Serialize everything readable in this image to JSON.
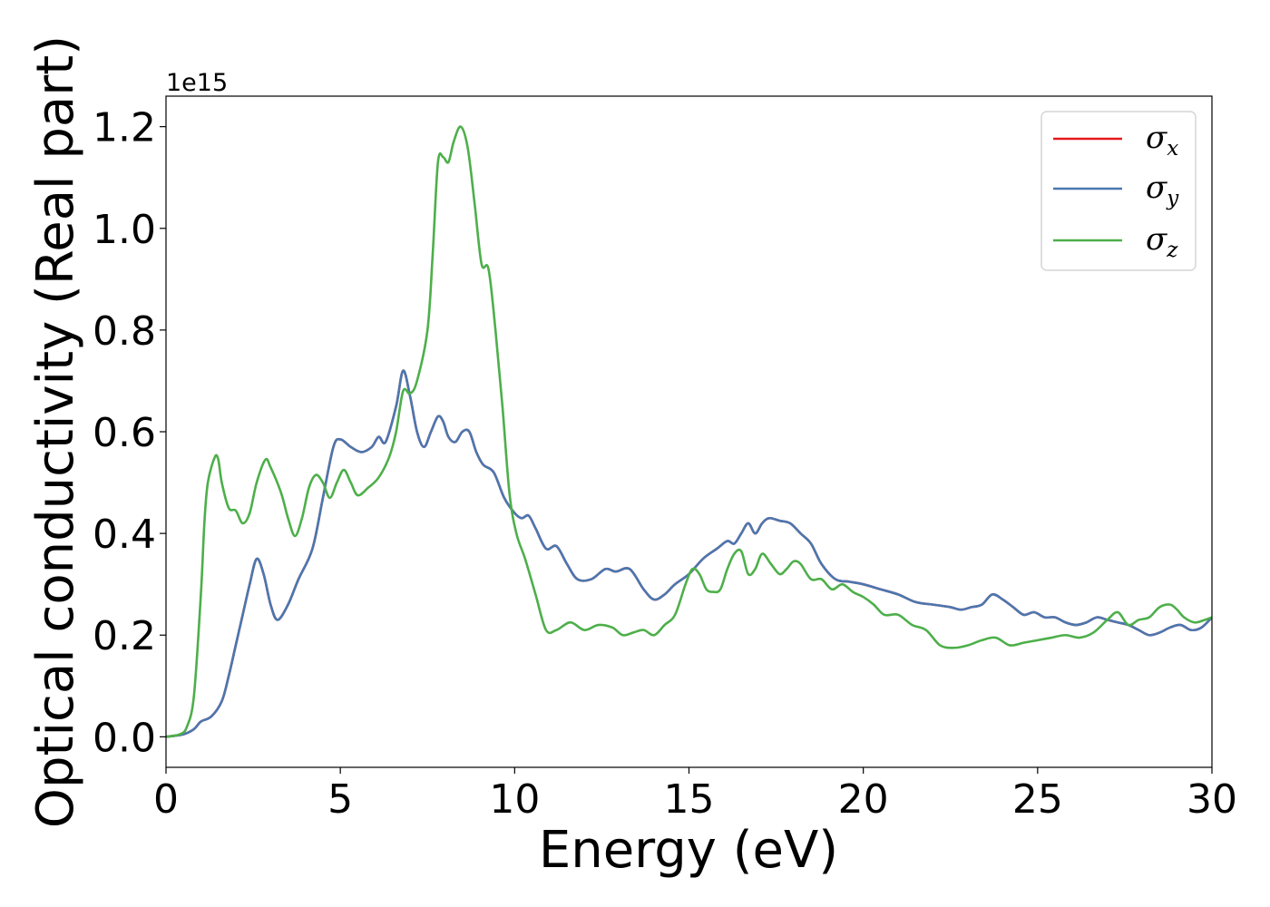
{
  "chart_data": {
    "type": "line",
    "title": "",
    "xlabel": "Energy (eV)",
    "ylabel": "Optical conductivity (Real part)",
    "y_offset_label": "1e15",
    "xlim": [
      0,
      30
    ],
    "ylim": [
      -0.06,
      1.26
    ],
    "xticks": [
      0,
      5,
      10,
      15,
      20,
      25,
      30
    ],
    "xtick_labels": [
      "0",
      "5",
      "10",
      "15",
      "20",
      "25",
      "30"
    ],
    "yticks": [
      0.0,
      0.2,
      0.4,
      0.6,
      0.8,
      1.0,
      1.2
    ],
    "ytick_labels": [
      "0.0",
      "0.2",
      "0.4",
      "0.6",
      "0.8",
      "1.0",
      "1.2"
    ],
    "grid": false,
    "legend_position": "top-right",
    "series": [
      {
        "name": "σx",
        "legend_base": "σ",
        "legend_sub": "x",
        "color": "#e41a1c",
        "x": [
          0,
          0.5,
          0.8,
          1.0,
          1.3,
          1.6,
          1.8,
          2.0,
          2.2,
          2.4,
          2.6,
          2.8,
          3.0,
          3.2,
          3.5,
          3.8,
          4.2,
          4.5,
          4.8,
          5.0,
          5.3,
          5.6,
          5.9,
          6.1,
          6.3,
          6.6,
          6.8,
          7.0,
          7.2,
          7.4,
          7.6,
          7.8,
          7.95,
          8.1,
          8.3,
          8.5,
          8.7,
          8.9,
          9.1,
          9.4,
          9.7,
          10.0,
          10.2,
          10.4,
          10.6,
          10.9,
          11.2,
          11.5,
          11.8,
          12.2,
          12.6,
          12.9,
          13.3,
          13.7,
          14.0,
          14.3,
          14.6,
          15.0,
          15.4,
          15.8,
          16.1,
          16.3,
          16.5,
          16.7,
          16.9,
          17.1,
          17.3,
          17.6,
          17.9,
          18.2,
          18.5,
          18.8,
          19.2,
          19.6,
          20.0,
          20.5,
          21.0,
          21.5,
          22.0,
          22.5,
          22.8,
          23.1,
          23.4,
          23.7,
          24.0,
          24.3,
          24.6,
          24.9,
          25.2,
          25.5,
          25.8,
          26.1,
          26.4,
          26.7,
          27.0,
          27.3,
          27.6,
          27.9,
          28.2,
          28.5,
          28.8,
          29.1,
          29.4,
          29.7,
          30.0
        ],
        "y": [
          0.0,
          0.005,
          0.015,
          0.03,
          0.04,
          0.07,
          0.12,
          0.18,
          0.24,
          0.3,
          0.35,
          0.32,
          0.26,
          0.23,
          0.26,
          0.31,
          0.37,
          0.47,
          0.57,
          0.585,
          0.57,
          0.56,
          0.57,
          0.59,
          0.58,
          0.65,
          0.72,
          0.67,
          0.6,
          0.57,
          0.6,
          0.63,
          0.62,
          0.59,
          0.58,
          0.6,
          0.6,
          0.56,
          0.535,
          0.52,
          0.47,
          0.44,
          0.43,
          0.435,
          0.41,
          0.37,
          0.375,
          0.34,
          0.31,
          0.31,
          0.33,
          0.325,
          0.33,
          0.29,
          0.27,
          0.28,
          0.3,
          0.32,
          0.35,
          0.37,
          0.385,
          0.38,
          0.4,
          0.42,
          0.4,
          0.42,
          0.43,
          0.425,
          0.42,
          0.4,
          0.38,
          0.34,
          0.31,
          0.305,
          0.3,
          0.29,
          0.28,
          0.265,
          0.26,
          0.255,
          0.25,
          0.255,
          0.26,
          0.28,
          0.27,
          0.255,
          0.24,
          0.245,
          0.235,
          0.235,
          0.225,
          0.22,
          0.225,
          0.235,
          0.23,
          0.225,
          0.22,
          0.21,
          0.2,
          0.205,
          0.215,
          0.22,
          0.21,
          0.215,
          0.235
        ]
      },
      {
        "name": "σy",
        "legend_base": "σ",
        "legend_sub": "y",
        "color": "#4a77b0",
        "x": [
          0,
          0.5,
          0.8,
          1.0,
          1.3,
          1.6,
          1.8,
          2.0,
          2.2,
          2.4,
          2.6,
          2.8,
          3.0,
          3.2,
          3.5,
          3.8,
          4.2,
          4.5,
          4.8,
          5.0,
          5.3,
          5.6,
          5.9,
          6.1,
          6.3,
          6.6,
          6.8,
          7.0,
          7.2,
          7.4,
          7.6,
          7.8,
          7.95,
          8.1,
          8.3,
          8.5,
          8.7,
          8.9,
          9.1,
          9.4,
          9.7,
          10.0,
          10.2,
          10.4,
          10.6,
          10.9,
          11.2,
          11.5,
          11.8,
          12.2,
          12.6,
          12.9,
          13.3,
          13.7,
          14.0,
          14.3,
          14.6,
          15.0,
          15.4,
          15.8,
          16.1,
          16.3,
          16.5,
          16.7,
          16.9,
          17.1,
          17.3,
          17.6,
          17.9,
          18.2,
          18.5,
          18.8,
          19.2,
          19.6,
          20.0,
          20.5,
          21.0,
          21.5,
          22.0,
          22.5,
          22.8,
          23.1,
          23.4,
          23.7,
          24.0,
          24.3,
          24.6,
          24.9,
          25.2,
          25.5,
          25.8,
          26.1,
          26.4,
          26.7,
          27.0,
          27.3,
          27.6,
          27.9,
          28.2,
          28.5,
          28.8,
          29.1,
          29.4,
          29.7,
          30.0
        ],
        "y": [
          0.0,
          0.005,
          0.015,
          0.03,
          0.04,
          0.07,
          0.12,
          0.18,
          0.24,
          0.3,
          0.35,
          0.32,
          0.26,
          0.23,
          0.26,
          0.31,
          0.37,
          0.47,
          0.57,
          0.585,
          0.57,
          0.56,
          0.57,
          0.59,
          0.58,
          0.65,
          0.72,
          0.67,
          0.6,
          0.57,
          0.6,
          0.63,
          0.62,
          0.59,
          0.58,
          0.6,
          0.6,
          0.56,
          0.535,
          0.52,
          0.47,
          0.44,
          0.43,
          0.435,
          0.41,
          0.37,
          0.375,
          0.34,
          0.31,
          0.31,
          0.33,
          0.325,
          0.33,
          0.29,
          0.27,
          0.28,
          0.3,
          0.32,
          0.35,
          0.37,
          0.385,
          0.38,
          0.4,
          0.42,
          0.4,
          0.42,
          0.43,
          0.425,
          0.42,
          0.4,
          0.38,
          0.34,
          0.31,
          0.305,
          0.3,
          0.29,
          0.28,
          0.265,
          0.26,
          0.255,
          0.25,
          0.255,
          0.26,
          0.28,
          0.27,
          0.255,
          0.24,
          0.245,
          0.235,
          0.235,
          0.225,
          0.22,
          0.225,
          0.235,
          0.23,
          0.225,
          0.22,
          0.21,
          0.2,
          0.205,
          0.215,
          0.22,
          0.21,
          0.215,
          0.235
        ]
      },
      {
        "name": "σz",
        "legend_base": "σ",
        "legend_sub": "z",
        "color": "#4daf4a",
        "x": [
          0,
          0.4,
          0.6,
          0.8,
          1.0,
          1.1,
          1.2,
          1.4,
          1.5,
          1.6,
          1.8,
          2.0,
          2.2,
          2.4,
          2.6,
          2.85,
          3.0,
          3.3,
          3.5,
          3.7,
          3.9,
          4.1,
          4.3,
          4.5,
          4.7,
          4.9,
          5.1,
          5.3,
          5.5,
          5.8,
          6.1,
          6.4,
          6.6,
          6.8,
          7.0,
          7.2,
          7.5,
          7.65,
          7.8,
          7.95,
          8.1,
          8.25,
          8.45,
          8.65,
          8.85,
          9.05,
          9.25,
          9.45,
          9.65,
          9.85,
          10.05,
          10.3,
          10.6,
          10.9,
          11.2,
          11.6,
          12.0,
          12.4,
          12.8,
          13.1,
          13.4,
          13.7,
          14.0,
          14.3,
          14.6,
          14.9,
          15.1,
          15.3,
          15.5,
          15.7,
          15.9,
          16.1,
          16.3,
          16.5,
          16.7,
          16.9,
          17.1,
          17.35,
          17.6,
          17.8,
          18.0,
          18.2,
          18.5,
          18.8,
          19.1,
          19.4,
          19.7,
          20.0,
          20.3,
          20.6,
          21.0,
          21.4,
          21.8,
          22.2,
          22.6,
          23.0,
          23.4,
          23.8,
          24.2,
          24.6,
          25.0,
          25.4,
          25.8,
          26.2,
          26.6,
          27.0,
          27.3,
          27.6,
          27.9,
          28.2,
          28.5,
          28.8,
          29.0,
          29.2,
          29.5,
          29.8,
          30.0
        ],
        "y": [
          0.0,
          0.005,
          0.02,
          0.08,
          0.28,
          0.42,
          0.5,
          0.55,
          0.545,
          0.5,
          0.45,
          0.445,
          0.42,
          0.44,
          0.5,
          0.545,
          0.53,
          0.48,
          0.43,
          0.395,
          0.43,
          0.49,
          0.515,
          0.5,
          0.47,
          0.5,
          0.525,
          0.5,
          0.475,
          0.49,
          0.51,
          0.55,
          0.6,
          0.68,
          0.675,
          0.7,
          0.8,
          0.95,
          1.13,
          1.14,
          1.13,
          1.17,
          1.2,
          1.16,
          1.05,
          0.93,
          0.92,
          0.8,
          0.65,
          0.48,
          0.4,
          0.35,
          0.28,
          0.21,
          0.21,
          0.225,
          0.21,
          0.22,
          0.215,
          0.2,
          0.205,
          0.21,
          0.2,
          0.22,
          0.24,
          0.3,
          0.33,
          0.32,
          0.29,
          0.285,
          0.29,
          0.33,
          0.36,
          0.365,
          0.32,
          0.33,
          0.36,
          0.34,
          0.32,
          0.33,
          0.345,
          0.34,
          0.31,
          0.31,
          0.29,
          0.3,
          0.285,
          0.275,
          0.26,
          0.24,
          0.24,
          0.22,
          0.21,
          0.18,
          0.175,
          0.18,
          0.19,
          0.195,
          0.18,
          0.185,
          0.19,
          0.195,
          0.2,
          0.195,
          0.205,
          0.23,
          0.245,
          0.22,
          0.23,
          0.235,
          0.255,
          0.26,
          0.25,
          0.235,
          0.225,
          0.23,
          0.235
        ]
      }
    ]
  }
}
